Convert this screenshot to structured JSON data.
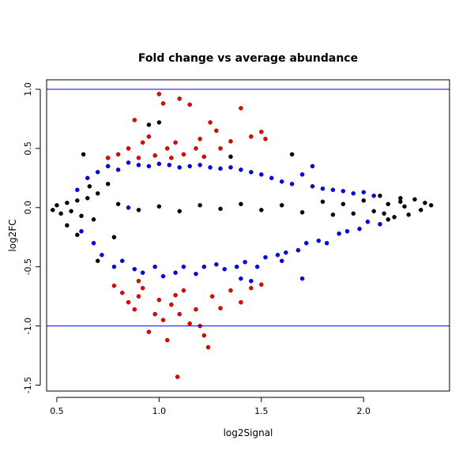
{
  "chart_data": {
    "type": "scatter",
    "title": "Fold change vs average abundance",
    "xlabel": "log2Signal",
    "ylabel": "log2FC",
    "xlim": [
      0.45,
      2.42
    ],
    "ylim": [
      -1.55,
      1.08
    ],
    "x_ticks": [
      0.5,
      1.0,
      1.5,
      2.0
    ],
    "x_tick_labels": [
      "0.5",
      "1.0",
      "1.5",
      "2.0"
    ],
    "y_ticks": [
      -1.5,
      -1.0,
      -0.5,
      0.0,
      0.5,
      1.0
    ],
    "y_tick_labels": [
      "-1.5",
      "-1.0",
      "-0.5",
      "0.0",
      "0.5",
      "1.0"
    ],
    "grid": false,
    "reference_lines": [
      {
        "axis": "y",
        "value": 1.0,
        "color": "#0000ff"
      },
      {
        "axis": "y",
        "value": -1.0,
        "color": "#0000ff"
      }
    ],
    "colors": {
      "black": "#000000",
      "blue": "#0000ff",
      "red": "#ee0000"
    },
    "series": [
      {
        "color": "black",
        "points": [
          [
            0.48,
            -0.02
          ],
          [
            0.5,
            0.02
          ],
          [
            0.52,
            -0.05
          ],
          [
            0.55,
            0.04
          ],
          [
            0.57,
            -0.03
          ],
          [
            0.6,
            0.06
          ],
          [
            0.62,
            -0.07
          ],
          [
            0.65,
            0.08
          ],
          [
            0.68,
            -0.1
          ],
          [
            0.7,
            0.12
          ],
          [
            0.6,
            -0.23
          ],
          [
            0.66,
            0.18
          ],
          [
            0.55,
            -0.15
          ],
          [
            0.63,
            0.45
          ],
          [
            0.7,
            -0.45
          ],
          [
            0.75,
            0.2
          ],
          [
            0.78,
            -0.25
          ],
          [
            0.8,
            0.03
          ],
          [
            0.9,
            -0.02
          ],
          [
            1.0,
            0.01
          ],
          [
            1.1,
            -0.03
          ],
          [
            1.2,
            0.02
          ],
          [
            1.3,
            -0.01
          ],
          [
            1.4,
            0.03
          ],
          [
            1.5,
            -0.02
          ],
          [
            1.6,
            0.02
          ],
          [
            1.7,
            -0.04
          ],
          [
            1.8,
            0.05
          ],
          [
            1.85,
            -0.06
          ],
          [
            1.9,
            0.03
          ],
          [
            1.95,
            -0.05
          ],
          [
            2.0,
            0.06
          ],
          [
            2.05,
            -0.03
          ],
          [
            2.08,
            0.1
          ],
          [
            2.1,
            -0.05
          ],
          [
            2.12,
            0.03
          ],
          [
            2.15,
            -0.08
          ],
          [
            2.18,
            0.05
          ],
          [
            2.2,
            0.01
          ],
          [
            2.22,
            -0.06
          ],
          [
            2.25,
            0.07
          ],
          [
            2.28,
            -0.02
          ],
          [
            2.3,
            0.04
          ],
          [
            2.33,
            0.02
          ],
          [
            2.18,
            0.08
          ],
          [
            2.12,
            -0.1
          ],
          [
            1.0,
            0.72
          ],
          [
            1.35,
            0.43
          ],
          [
            1.65,
            0.45
          ],
          [
            0.95,
            0.7
          ]
        ]
      },
      {
        "color": "blue",
        "points": [
          [
            0.6,
            0.15
          ],
          [
            0.62,
            -0.2
          ],
          [
            0.65,
            0.25
          ],
          [
            0.68,
            -0.3
          ],
          [
            0.7,
            0.3
          ],
          [
            0.72,
            -0.4
          ],
          [
            0.75,
            0.35
          ],
          [
            0.78,
            -0.5
          ],
          [
            0.8,
            0.32
          ],
          [
            0.82,
            -0.45
          ],
          [
            0.85,
            0.38
          ],
          [
            0.88,
            -0.52
          ],
          [
            0.9,
            0.36
          ],
          [
            0.92,
            -0.55
          ],
          [
            0.95,
            0.35
          ],
          [
            0.98,
            -0.5
          ],
          [
            1.0,
            0.37
          ],
          [
            1.02,
            -0.58
          ],
          [
            1.05,
            0.36
          ],
          [
            1.08,
            -0.55
          ],
          [
            1.1,
            0.34
          ],
          [
            1.12,
            -0.5
          ],
          [
            1.15,
            0.35
          ],
          [
            1.18,
            -0.56
          ],
          [
            1.2,
            0.36
          ],
          [
            1.22,
            -0.5
          ],
          [
            1.25,
            0.34
          ],
          [
            1.28,
            -0.48
          ],
          [
            1.3,
            0.33
          ],
          [
            1.32,
            -0.52
          ],
          [
            1.35,
            0.34
          ],
          [
            1.38,
            -0.5
          ],
          [
            1.4,
            0.32
          ],
          [
            1.42,
            -0.46
          ],
          [
            1.45,
            0.3
          ],
          [
            1.48,
            -0.5
          ],
          [
            1.5,
            0.28
          ],
          [
            1.52,
            -0.42
          ],
          [
            1.55,
            0.25
          ],
          [
            1.58,
            -0.4
          ],
          [
            1.6,
            0.22
          ],
          [
            1.62,
            -0.38
          ],
          [
            1.65,
            0.2
          ],
          [
            1.68,
            -0.36
          ],
          [
            1.7,
            0.28
          ],
          [
            1.72,
            -0.3
          ],
          [
            1.75,
            0.18
          ],
          [
            1.78,
            -0.28
          ],
          [
            1.8,
            0.16
          ],
          [
            1.82,
            -0.3
          ],
          [
            1.85,
            0.15
          ],
          [
            1.88,
            -0.22
          ],
          [
            1.9,
            0.14
          ],
          [
            1.92,
            -0.2
          ],
          [
            1.95,
            0.12
          ],
          [
            1.98,
            -0.18
          ],
          [
            2.0,
            0.13
          ],
          [
            2.02,
            -0.12
          ],
          [
            2.05,
            0.1
          ],
          [
            2.08,
            -0.14
          ],
          [
            1.75,
            0.35
          ],
          [
            1.6,
            -0.45
          ],
          [
            1.7,
            -0.6
          ],
          [
            1.45,
            -0.62
          ],
          [
            1.4,
            -0.6
          ],
          [
            0.85,
            0.0
          ]
        ]
      },
      {
        "color": "red",
        "points": [
          [
            0.75,
            0.42
          ],
          [
            0.8,
            0.45
          ],
          [
            0.85,
            0.5
          ],
          [
            0.88,
            0.74
          ],
          [
            0.9,
            0.42
          ],
          [
            0.92,
            0.55
          ],
          [
            0.95,
            0.6
          ],
          [
            0.98,
            0.44
          ],
          [
            1.0,
            0.96
          ],
          [
            1.02,
            0.88
          ],
          [
            1.04,
            0.5
          ],
          [
            1.06,
            0.42
          ],
          [
            1.08,
            0.55
          ],
          [
            1.1,
            0.92
          ],
          [
            1.12,
            0.45
          ],
          [
            1.15,
            0.87
          ],
          [
            1.18,
            0.5
          ],
          [
            1.2,
            0.58
          ],
          [
            1.22,
            0.43
          ],
          [
            1.25,
            0.72
          ],
          [
            1.28,
            0.65
          ],
          [
            1.3,
            0.5
          ],
          [
            1.35,
            0.56
          ],
          [
            1.4,
            0.84
          ],
          [
            1.45,
            0.6
          ],
          [
            1.5,
            0.64
          ],
          [
            1.52,
            0.58
          ],
          [
            0.78,
            -0.66
          ],
          [
            0.82,
            -0.72
          ],
          [
            0.85,
            -0.8
          ],
          [
            0.88,
            -0.86
          ],
          [
            0.9,
            -0.75
          ],
          [
            0.92,
            -0.68
          ],
          [
            0.95,
            -1.05
          ],
          [
            0.98,
            -0.9
          ],
          [
            1.0,
            -0.78
          ],
          [
            1.02,
            -0.95
          ],
          [
            1.04,
            -1.12
          ],
          [
            1.06,
            -0.82
          ],
          [
            1.08,
            -0.74
          ],
          [
            1.1,
            -0.9
          ],
          [
            1.12,
            -0.7
          ],
          [
            1.15,
            -0.98
          ],
          [
            1.18,
            -0.86
          ],
          [
            1.2,
            -1.0
          ],
          [
            1.22,
            -1.08
          ],
          [
            1.24,
            -1.18
          ],
          [
            1.26,
            -0.75
          ],
          [
            1.3,
            -0.85
          ],
          [
            1.35,
            -0.7
          ],
          [
            1.4,
            -0.8
          ],
          [
            1.45,
            -0.68
          ],
          [
            1.5,
            -0.65
          ],
          [
            1.09,
            -1.43
          ],
          [
            0.9,
            -0.62
          ]
        ]
      }
    ]
  }
}
